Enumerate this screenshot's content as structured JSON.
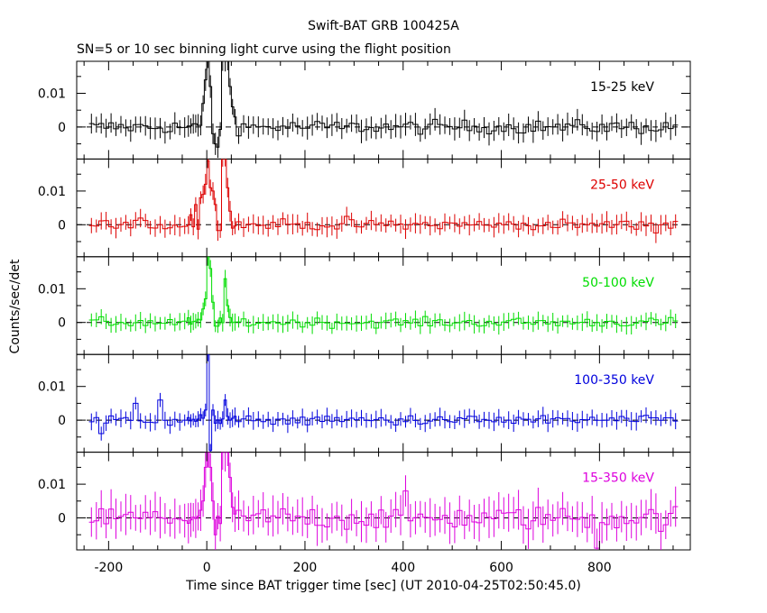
{
  "chart_data": {
    "type": "line",
    "title": "Swift-BAT GRB 100425A",
    "subtitle": "SN=5 or 10 sec binning light curve using the flight position",
    "xlabel": "Time since BAT trigger time [sec] (UT 2010-04-25T02:50:45.0)",
    "ylabel": "Counts/sec/det",
    "xlim": [
      -265,
      985
    ],
    "x_ticks": [
      -200,
      0,
      200,
      400,
      600,
      800
    ],
    "y_ticks": [
      0,
      0.01
    ],
    "ylim": [
      -0.0095,
      0.0195
    ],
    "grid": false,
    "zero_line": "dashed",
    "panels": [
      {
        "name": "15-25 keV",
        "color": "#000000",
        "noise": 0.0026,
        "err": 0.0028,
        "peaks": [
          [
            -8,
            0.007
          ],
          [
            -3,
            0.014
          ],
          [
            0,
            0.02
          ],
          [
            5,
            0.012
          ],
          [
            10,
            -0.002
          ],
          [
            15,
            -0.005
          ],
          [
            20,
            -0.006
          ],
          [
            30,
            0.02
          ],
          [
            35,
            0.02
          ],
          [
            40,
            0.02
          ],
          [
            45,
            0.012
          ],
          [
            50,
            0.006
          ],
          [
            55,
            0.003
          ]
        ]
      },
      {
        "name": "25-50 keV",
        "color": "#dd0000",
        "noise": 0.0022,
        "err": 0.0025,
        "peaks": [
          [
            -35,
            0.003
          ],
          [
            -25,
            0.006
          ],
          [
            -15,
            0.008
          ],
          [
            -8,
            0.009
          ],
          [
            -3,
            0.012
          ],
          [
            0,
            0.019
          ],
          [
            5,
            0.011
          ],
          [
            10,
            0.01
          ],
          [
            15,
            0.006
          ],
          [
            30,
            0.02
          ],
          [
            35,
            0.02
          ],
          [
            40,
            0.011
          ],
          [
            45,
            0.004
          ]
        ]
      },
      {
        "name": "50-100 keV",
        "color": "#00dd00",
        "noise": 0.0018,
        "err": 0.0022,
        "peaks": [
          [
            -145,
            0.004
          ],
          [
            -135,
            0.005
          ],
          [
            -125,
            0.003
          ],
          [
            -8,
            0.004
          ],
          [
            -3,
            0.007
          ],
          [
            0,
            0.0195
          ],
          [
            3,
            0.016
          ],
          [
            8,
            0.006
          ],
          [
            35,
            0.013
          ],
          [
            40,
            0.005
          ]
        ]
      },
      {
        "name": "100-350 keV",
        "color": "#0000dd",
        "noise": 0.0018,
        "err": 0.0022,
        "peaks": [
          [
            -220,
            -0.004
          ],
          [
            -150,
            0.005
          ],
          [
            -100,
            0.006
          ],
          [
            -5,
            0.003
          ],
          [
            0,
            0.0195
          ],
          [
            3,
            0.008
          ],
          [
            6,
            -0.009
          ],
          [
            10,
            0.003
          ],
          [
            35,
            0.006
          ]
        ]
      },
      {
        "name": "15-350 keV",
        "color": "#dd00dd",
        "noise": 0.0045,
        "err": 0.005,
        "peaks": [
          [
            -225,
            0.008
          ],
          [
            -205,
            -0.007
          ],
          [
            -195,
            -0.009
          ],
          [
            -185,
            -0.008
          ],
          [
            -10,
            0.005
          ],
          [
            -3,
            0.015
          ],
          [
            0,
            0.0195
          ],
          [
            5,
            0.015
          ],
          [
            10,
            0.005
          ],
          [
            15,
            -0.005
          ],
          [
            30,
            0.0195
          ],
          [
            35,
            0.0195
          ],
          [
            40,
            0.0195
          ],
          [
            45,
            0.012
          ],
          [
            400,
            0.008
          ],
          [
            515,
            0.006
          ],
          [
            790,
            -0.009
          ]
        ]
      }
    ]
  }
}
